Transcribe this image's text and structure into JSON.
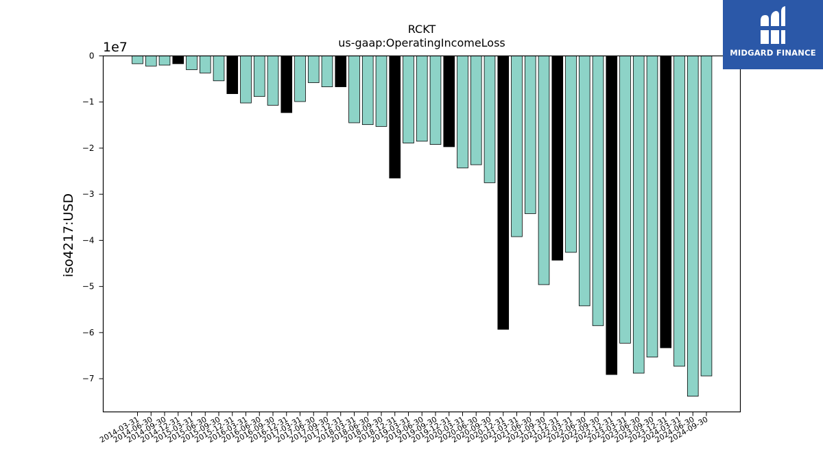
{
  "brand": {
    "name": "MIDGARD FINANCE",
    "bg_color": "#2b58a8",
    "text_color": "#ffffff"
  },
  "chart_data": {
    "type": "bar",
    "title": "RCKT",
    "subtitle": "us-gaap:OperatingIncomeLoss",
    "ylabel": "iso4217:USD",
    "xlabel": "",
    "y_scale_label": "1e7",
    "y_multiplier": 10000000,
    "ylim": [
      -7.72,
      0
    ],
    "yticks": [
      0,
      -1,
      -2,
      -3,
      -4,
      -5,
      -6,
      -7
    ],
    "ytick_labels": [
      "0",
      "−1",
      "−2",
      "−3",
      "−4",
      "−5",
      "−6",
      "−7"
    ],
    "grid": false,
    "colors": {
      "quarter": "#8dd3c7",
      "annual": "#000000",
      "edge": "#000000"
    },
    "categories": [
      "2014-03-31",
      "2014-06-30",
      "2014-09-30",
      "2014-12-31",
      "2015-03-31",
      "2015-06-30",
      "2015-09-30",
      "2015-12-31",
      "2016-03-31",
      "2016-06-30",
      "2016-09-30",
      "2016-12-31",
      "2017-03-31",
      "2017-06-30",
      "2017-09-30",
      "2017-12-31",
      "2018-03-31",
      "2018-06-30",
      "2018-09-30",
      "2018-12-31",
      "2019-03-31",
      "2019-06-30",
      "2019-09-30",
      "2019-12-31",
      "2020-03-31",
      "2020-06-30",
      "2020-09-30",
      "2020-12-31",
      "2021-03-31",
      "2021-06-30",
      "2021-09-30",
      "2021-12-31",
      "2022-03-31",
      "2022-06-30",
      "2022-09-30",
      "2022-12-31",
      "2023-03-31",
      "2023-06-30",
      "2023-09-30",
      "2023-12-31",
      "2024-03-31",
      "2024-06-30",
      "2024-09-30"
    ],
    "values": [
      -0.17,
      -0.22,
      -0.2,
      -0.17,
      -0.3,
      -0.37,
      -0.54,
      -0.82,
      -1.02,
      -0.88,
      -1.07,
      -1.23,
      -0.99,
      -0.58,
      -0.67,
      -0.67,
      -1.45,
      -1.49,
      -1.53,
      -2.65,
      -1.89,
      -1.85,
      -1.92,
      -1.97,
      -2.43,
      -2.36,
      -2.75,
      -5.93,
      -3.92,
      -3.42,
      -4.96,
      -4.43,
      -4.26,
      -5.42,
      -5.85,
      -6.91,
      -6.23,
      -6.88,
      -6.53,
      -6.33,
      -6.73,
      -7.38,
      -6.94
    ],
    "annual_flags": [
      false,
      false,
      false,
      true,
      false,
      false,
      false,
      true,
      false,
      false,
      false,
      true,
      false,
      false,
      false,
      true,
      false,
      false,
      false,
      true,
      false,
      false,
      false,
      true,
      false,
      false,
      false,
      true,
      false,
      false,
      false,
      true,
      false,
      false,
      false,
      true,
      false,
      false,
      false,
      true,
      false,
      false,
      false
    ]
  }
}
